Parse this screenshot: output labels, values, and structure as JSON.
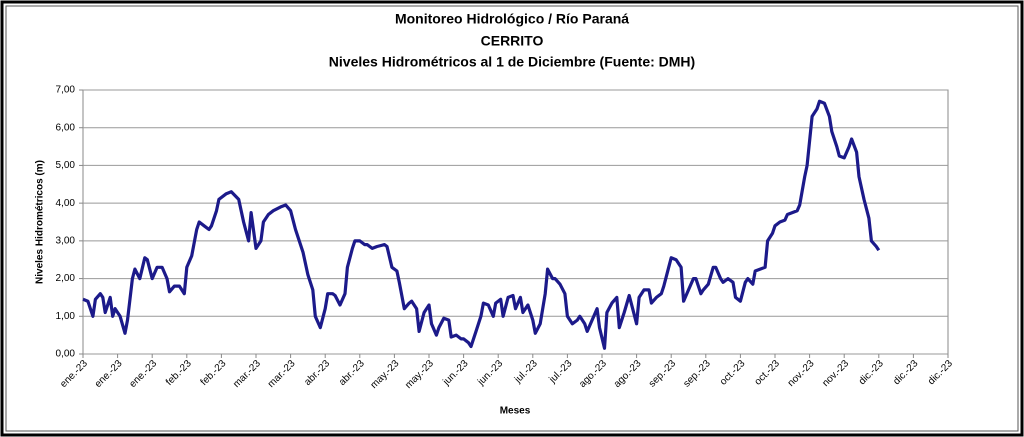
{
  "chart_data": {
    "type": "line",
    "title": "Monitoreo Hidrológico / Río Paraná",
    "station": "CERRITO",
    "subtitle": "Niveles Hidrométricos al 1 de Diciembre (Fuente: DMH)",
    "y_label": "Niveles Hidrométricos (m)",
    "x_label": "Meses",
    "xlim": [
      0,
      350
    ],
    "xticks": [
      {
        "value": 0,
        "label": "ene.-23"
      },
      {
        "value": 14,
        "label": "ene.-23"
      },
      {
        "value": 28,
        "label": "ene.-23"
      },
      {
        "value": 42,
        "label": "feb.-23"
      },
      {
        "value": 56,
        "label": "feb.-23"
      },
      {
        "value": 70,
        "label": "mar.-23"
      },
      {
        "value": 84,
        "label": "mar.-23"
      },
      {
        "value": 98,
        "label": "abr.-23"
      },
      {
        "value": 112,
        "label": "abr.-23"
      },
      {
        "value": 126,
        "label": "may.-23"
      },
      {
        "value": 140,
        "label": "may.-23"
      },
      {
        "value": 154,
        "label": "jun.-23"
      },
      {
        "value": 168,
        "label": "jun.-23"
      },
      {
        "value": 182,
        "label": "jul.-23"
      },
      {
        "value": 196,
        "label": "jul.-23"
      },
      {
        "value": 210,
        "label": "ago.-23"
      },
      {
        "value": 224,
        "label": "ago.-23"
      },
      {
        "value": 238,
        "label": "sep.-23"
      },
      {
        "value": 252,
        "label": "sep.-23"
      },
      {
        "value": 266,
        "label": "oct.-23"
      },
      {
        "value": 280,
        "label": "oct.-23"
      },
      {
        "value": 294,
        "label": "nov.-23"
      },
      {
        "value": 308,
        "label": "nov.-23"
      },
      {
        "value": 322,
        "label": "dic.-23"
      },
      {
        "value": 336,
        "label": "dic.-23"
      },
      {
        "value": 350,
        "label": "dic.-23"
      }
    ],
    "ylim": [
      0,
      7
    ],
    "yticks": [
      {
        "value": 0,
        "label": "0,00"
      },
      {
        "value": 1,
        "label": "1,00"
      },
      {
        "value": 2,
        "label": "2,00"
      },
      {
        "value": 3,
        "label": "3,00"
      },
      {
        "value": 4,
        "label": "4,00"
      },
      {
        "value": 5,
        "label": "5,00"
      },
      {
        "value": 6,
        "label": "6,00"
      },
      {
        "value": 7,
        "label": "7,00"
      }
    ],
    "grid": true,
    "x": [
      0,
      2,
      4,
      5,
      7,
      8,
      9,
      11,
      12,
      13,
      15,
      17,
      18,
      20,
      21,
      23,
      25,
      26,
      28,
      30,
      32,
      34,
      35,
      37,
      39,
      41,
      42,
      44,
      46,
      47,
      49,
      51,
      52,
      54,
      55,
      58,
      60,
      63,
      65,
      67,
      68,
      70,
      72,
      73,
      75,
      77,
      80,
      82,
      84,
      86,
      89,
      91,
      93,
      94,
      96,
      98,
      99,
      101,
      102,
      104,
      106,
      107,
      109,
      110,
      112,
      114,
      115,
      117,
      119,
      122,
      123,
      125,
      127,
      128,
      130,
      132,
      133,
      135,
      136,
      138,
      140,
      141,
      143,
      144,
      146,
      148,
      149,
      151,
      153,
      154,
      156,
      157,
      159,
      161,
      162,
      164,
      166,
      167,
      169,
      170,
      172,
      174,
      175,
      177,
      178,
      180,
      182,
      183,
      185,
      187,
      188,
      190,
      191,
      193,
      195,
      196,
      198,
      200,
      201,
      203,
      204,
      206,
      208,
      209,
      211,
      212,
      214,
      216,
      217,
      219,
      221,
      222,
      224,
      225,
      227,
      229,
      230,
      232,
      234,
      235,
      237,
      238,
      240,
      242,
      243,
      245,
      247,
      248,
      250,
      251,
      253,
      255,
      256,
      258,
      259,
      261,
      263,
      264,
      266,
      268,
      269,
      271,
      272,
      274,
      276,
      277,
      279,
      280,
      282,
      284,
      285,
      287,
      289,
      290,
      292,
      293,
      295,
      297,
      298,
      300,
      302,
      303,
      305,
      306,
      308,
      310,
      311,
      313,
      314,
      316,
      318,
      319,
      321,
      322
    ],
    "series": [
      {
        "color": "#1c1a8a",
        "values": [
          1.45,
          1.4,
          1.0,
          1.45,
          1.6,
          1.5,
          1.1,
          1.5,
          1.0,
          1.2,
          1.0,
          0.55,
          0.9,
          2.0,
          2.25,
          2.0,
          2.55,
          2.5,
          2.0,
          2.3,
          2.3,
          2.0,
          1.65,
          1.8,
          1.8,
          1.6,
          2.3,
          2.6,
          3.3,
          3.5,
          3.4,
          3.3,
          3.4,
          3.8,
          4.1,
          4.25,
          4.3,
          4.1,
          3.5,
          3.0,
          3.75,
          2.8,
          3.0,
          3.5,
          3.7,
          3.8,
          3.9,
          3.95,
          3.8,
          3.3,
          2.7,
          2.1,
          1.7,
          1.0,
          0.7,
          1.2,
          1.6,
          1.6,
          1.55,
          1.3,
          1.6,
          2.3,
          2.8,
          3.0,
          3.0,
          2.9,
          2.9,
          2.8,
          2.85,
          2.9,
          2.85,
          2.3,
          2.2,
          1.9,
          1.2,
          1.35,
          1.4,
          1.2,
          0.6,
          1.1,
          1.3,
          0.8,
          0.5,
          0.7,
          0.95,
          0.9,
          0.45,
          0.5,
          0.4,
          0.4,
          0.3,
          0.2,
          0.6,
          1.0,
          1.35,
          1.3,
          1.0,
          1.35,
          1.45,
          1.0,
          1.5,
          1.55,
          1.2,
          1.5,
          1.1,
          1.3,
          0.9,
          0.55,
          0.8,
          1.6,
          2.25,
          2.0,
          2.0,
          1.85,
          1.6,
          1.0,
          0.8,
          0.9,
          1.0,
          0.8,
          0.6,
          0.9,
          1.2,
          0.7,
          0.15,
          1.1,
          1.35,
          1.5,
          0.7,
          1.1,
          1.55,
          1.3,
          0.8,
          1.5,
          1.7,
          1.7,
          1.35,
          1.5,
          1.6,
          1.8,
          2.3,
          2.55,
          2.5,
          2.3,
          1.4,
          1.7,
          2.0,
          2.0,
          1.6,
          1.7,
          1.85,
          2.3,
          2.3,
          2.0,
          1.9,
          2.0,
          1.9,
          1.5,
          1.4,
          1.9,
          2.0,
          1.85,
          2.2,
          2.25,
          2.3,
          3.0,
          3.2,
          3.4,
          3.5,
          3.55,
          3.7,
          3.75,
          3.8,
          3.95,
          4.7,
          5.0,
          6.3,
          6.5,
          6.7,
          6.65,
          6.3,
          5.9,
          5.5,
          5.25,
          5.2,
          5.5,
          5.7,
          5.35,
          4.7,
          4.1,
          3.6,
          3.0,
          2.85,
          2.75
        ]
      }
    ]
  }
}
